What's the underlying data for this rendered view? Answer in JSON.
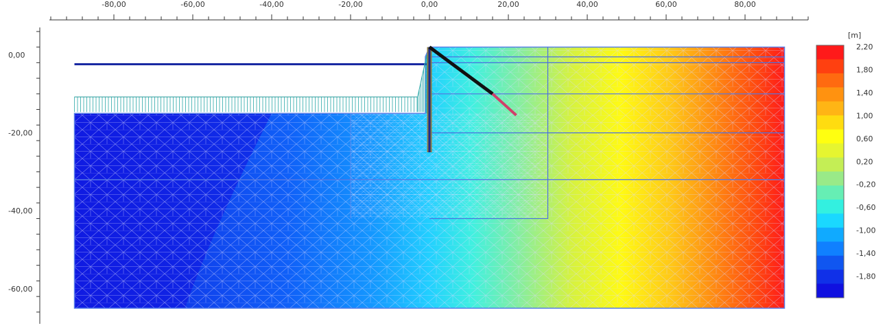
{
  "chart_data": {
    "type": "heatmap",
    "unit": "[m]",
    "x_ticks": [
      "-80,00",
      "-60,00",
      "-40,00",
      "-20,00",
      "0,00",
      "20,00",
      "40,00",
      "60,00",
      "80,00"
    ],
    "x_tick_values": [
      -80,
      -60,
      -40,
      -20,
      0,
      20,
      40,
      60,
      80
    ],
    "y_ticks": [
      "0,00",
      "-20,00",
      "-40,00",
      "-60,00"
    ],
    "y_tick_values": [
      0,
      -20,
      -40,
      -60
    ],
    "xlim": [
      -94,
      96
    ],
    "ylim": [
      -68,
      8
    ],
    "model_extent": {
      "x": [
        -90,
        90
      ],
      "y": [
        -65,
        2
      ]
    },
    "ground_level_left": -2.4,
    "excavation_level": -15,
    "wall": {
      "x": 0,
      "top": 2,
      "bottom": -25
    },
    "anchor": {
      "start": [
        0,
        2
      ],
      "free_end": [
        16,
        -10
      ],
      "grout_end": [
        22,
        -15.5
      ]
    },
    "surcharge": {
      "x": [
        -90,
        -3
      ],
      "y": -15
    },
    "layer_boundaries_right": [
      -0.5,
      -2,
      -10,
      -20,
      -32
    ],
    "colorbar": {
      "labels": [
        "2,20",
        "1,80",
        "1,40",
        "1,00",
        "0,60",
        "0,20",
        "-0,20",
        "-0,60",
        "-1,00",
        "-1,40",
        "-1,80"
      ],
      "colors": [
        "#ff1a1a",
        "#ff4010",
        "#ff6a10",
        "#ff9210",
        "#ffb515",
        "#ffdc10",
        "#ffff10",
        "#e6f530",
        "#c4ee55",
        "#99ea88",
        "#66eeb4",
        "#33f0e0",
        "#1ad8ff",
        "#10aaff",
        "#1080ff",
        "#1056f0",
        "#1030e8",
        "#1010e0"
      ]
    }
  }
}
